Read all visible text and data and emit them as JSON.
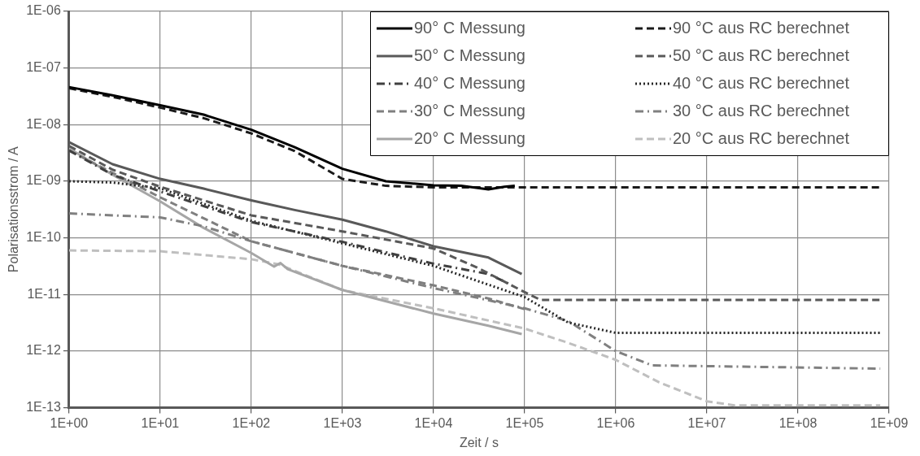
{
  "chart_data": {
    "type": "line",
    "xlabel": "Zeit / s",
    "ylabel": "Polarisationsstrom / A",
    "log": "xy",
    "grid": true,
    "legend": "top right",
    "marker": "none",
    "xlim": [
      1,
      1000000000
    ],
    "ylim": [
      1e-13,
      1e-06
    ],
    "xticks": [
      {
        "value": 1,
        "label": "1E+00"
      },
      {
        "value": 10,
        "label": "1E+01"
      },
      {
        "value": 100,
        "label": "1E+02"
      },
      {
        "value": 1000,
        "label": "1E+03"
      },
      {
        "value": 10000,
        "label": "1E+04"
      },
      {
        "value": 100000,
        "label": "1E+05"
      },
      {
        "value": 1000000,
        "label": "1E+06"
      },
      {
        "value": 10000000,
        "label": "1E+07"
      },
      {
        "value": 100000000,
        "label": "1E+08"
      },
      {
        "value": 1000000000,
        "label": "1E+09"
      }
    ],
    "yticks": [
      {
        "value": 1e-13,
        "label": "1E-13"
      },
      {
        "value": 1e-12,
        "label": "1E-12"
      },
      {
        "value": 1e-11,
        "label": "1E-11"
      },
      {
        "value": 1e-10,
        "label": "1E-10"
      },
      {
        "value": 1e-09,
        "label": "1E-09"
      },
      {
        "value": 1e-08,
        "label": "1E-08"
      },
      {
        "value": 1e-07,
        "label": "1E-07"
      },
      {
        "value": 1e-06,
        "label": "1E-06"
      }
    ],
    "series": [
      {
        "name": "90° C Messung",
        "color": "#000000",
        "line_style": "solid",
        "x": [
          1,
          3,
          10,
          30,
          100,
          300,
          1000,
          3000,
          10000,
          20000,
          40000,
          60000,
          78000
        ],
        "values": [
          4.6e-08,
          3.3e-08,
          2.2e-08,
          1.5e-08,
          8.1e-09,
          4e-09,
          1.66e-09,
          1e-09,
          8.5e-10,
          8.3e-10,
          7.2e-10,
          8e-10,
          8.3e-10
        ]
      },
      {
        "name": "90 °C aus RC berechnet",
        "color": "#1a1a1a",
        "line_style": "dashed",
        "x": [
          1,
          3,
          10,
          30,
          100,
          300,
          1000,
          3000,
          10000,
          100000,
          800000000
        ],
        "values": [
          4.4e-08,
          3.1e-08,
          2e-08,
          1.3e-08,
          7e-09,
          3.4e-09,
          1.1e-09,
          8.3e-10,
          7.8e-10,
          7.8e-10,
          7.8e-10
        ]
      },
      {
        "name": "50° C Messung",
        "color": "#595959",
        "line_style": "solid",
        "x": [
          1,
          3,
          10,
          30,
          100,
          300,
          1000,
          3000,
          10000,
          40000,
          93000
        ],
        "values": [
          4.9e-09,
          2e-09,
          1.1e-09,
          7.4e-10,
          4.6e-10,
          3.1e-10,
          2.1e-10,
          1.3e-10,
          7.1e-11,
          4.5e-11,
          2.3e-11
        ]
      },
      {
        "name": "50 °C aus RC berechnet",
        "color": "#595959",
        "line_style": "dashed",
        "x": [
          1,
          3,
          10,
          100,
          1000,
          10000,
          30000,
          100000,
          150000,
          800000000
        ],
        "values": [
          4.2e-09,
          1.6e-09,
          8e-10,
          2.5e-10,
          1.3e-10,
          6.5e-11,
          3e-11,
          1.1e-11,
          8e-12,
          8e-12
        ]
      },
      {
        "name": "40° C Messung",
        "color": "#404040",
        "line_style": "dashdot",
        "x": [
          1,
          3,
          10,
          100,
          1000,
          10000,
          40000,
          70000
        ],
        "values": [
          3.5e-09,
          1.3e-09,
          6.6e-10,
          1.9e-10,
          8.5e-11,
          3.5e-11,
          2.3e-11,
          1.5e-11
        ]
      },
      {
        "name": "40 °C aus RC berechnet",
        "color": "#262626",
        "line_style": "dotted",
        "x": [
          1,
          3,
          10,
          100,
          1000,
          10000,
          100000,
          300000,
          1000000,
          800000000
        ],
        "values": [
          1e-09,
          9.5e-10,
          7.5e-10,
          2e-10,
          8e-11,
          3.2e-11,
          9e-12,
          3.2e-12,
          2.1e-12,
          2.1e-12
        ]
      },
      {
        "name": "30° C Messung",
        "color": "#7f7f7f",
        "line_style": "dashed",
        "x": [
          1,
          10,
          100,
          1000,
          10000,
          40000,
          100000
        ],
        "values": [
          3.5e-09,
          5.2e-10,
          8.7e-11,
          3.2e-11,
          1.45e-11,
          8.5e-12,
          5.5e-12
        ]
      },
      {
        "name": "30 °C aus RC berechnet",
        "color": "#808080",
        "line_style": "dashdot",
        "x": [
          1,
          10,
          30,
          100,
          1000,
          10000,
          100000,
          300000,
          1000000,
          2500000,
          800000000
        ],
        "values": [
          2.7e-10,
          2.3e-10,
          1.6e-10,
          8.7e-11,
          3.2e-11,
          1.3e-11,
          5.7e-12,
          3.4e-12,
          1e-12,
          5.6e-13,
          4.9e-13
        ]
      },
      {
        "name": "20° C Messung",
        "color": "#a6a6a6",
        "line_style": "solid",
        "x": [
          1,
          3,
          10,
          30,
          100,
          178,
          209,
          251,
          1000,
          10000,
          40000,
          93000
        ],
        "values": [
          3.8e-09,
          1.3e-09,
          4.4e-10,
          1.5e-10,
          5.4e-11,
          3.1e-11,
          3.6e-11,
          2.8e-11,
          1.2e-11,
          4.6e-12,
          2.8e-12,
          2e-12
        ]
      },
      {
        "name": "20 °C aus RC berechnet",
        "color": "#bfbfbf",
        "line_style": "dashed",
        "x": [
          1,
          10,
          100,
          200,
          1000,
          10000,
          100000,
          300000,
          1000000,
          3000000,
          10000000,
          20000000,
          800000000
        ],
        "values": [
          6e-11,
          5.8e-11,
          4.2e-11,
          3.4e-11,
          1.2e-11,
          5.7e-12,
          2.5e-12,
          1.4e-12,
          7e-13,
          2.8e-13,
          1.3e-13,
          1.1e-13,
          1.1e-13
        ]
      }
    ]
  }
}
